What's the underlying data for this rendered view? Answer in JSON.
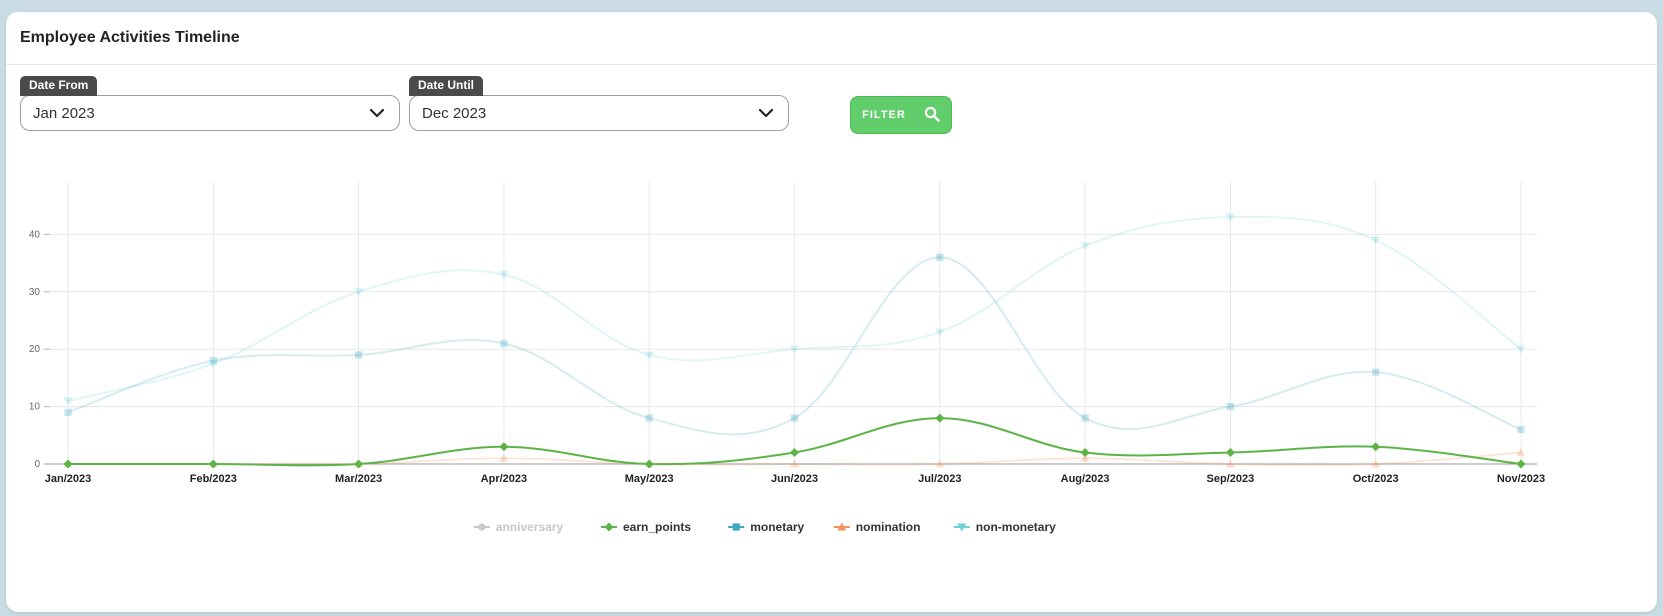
{
  "card": {
    "title": "Employee Activities Timeline"
  },
  "filters": {
    "date_from": {
      "label": "Date From",
      "value": "Jan 2023"
    },
    "date_until": {
      "label": "Date Until",
      "value": "Dec 2023"
    },
    "filter_button": {
      "label": "FILTER",
      "icon": "search-icon"
    }
  },
  "chart_data": {
    "type": "line",
    "title": "",
    "xlabel": "",
    "ylabel": "",
    "ylim": [
      0,
      50
    ],
    "yticks": [
      0,
      10,
      20,
      30,
      40,
      50
    ],
    "categories": [
      "Jan/2023",
      "Feb/2023",
      "Mar/2023",
      "Apr/2023",
      "May/2023",
      "Jun/2023",
      "Jul/2023",
      "Aug/2023",
      "Sep/2023",
      "Oct/2023",
      "Nov/2023"
    ],
    "grid": true,
    "legend_position": "bottom",
    "series": [
      {
        "name": "anniversary",
        "color": "#bbbbbb",
        "marker": "circle",
        "hidden": true,
        "values": [
          0,
          0,
          0,
          0,
          0,
          0,
          0,
          0,
          0,
          0,
          0
        ]
      },
      {
        "name": "earn_points",
        "color": "#5cb446",
        "marker": "diamond",
        "hidden": false,
        "values": [
          0,
          0,
          0,
          3,
          0,
          2,
          8,
          2,
          2,
          3,
          0
        ]
      },
      {
        "name": "monetary",
        "color": "#3aa7bd",
        "marker": "square",
        "hidden": false,
        "faded": true,
        "values": [
          9,
          18,
          19,
          21,
          8,
          8,
          36,
          8,
          10,
          16,
          6
        ]
      },
      {
        "name": "nomination",
        "color": "#f0935f",
        "marker": "triangle",
        "hidden": false,
        "faded": true,
        "values": [
          0,
          0,
          0,
          1,
          0,
          0,
          0,
          1,
          0,
          0,
          2
        ]
      },
      {
        "name": "non-monetary",
        "color": "#6fd0da",
        "marker": "triangle-down",
        "hidden": false,
        "faded": true,
        "values": [
          11,
          17.5,
          30,
          33,
          19,
          20,
          23,
          38,
          43,
          39,
          20
        ]
      }
    ]
  }
}
